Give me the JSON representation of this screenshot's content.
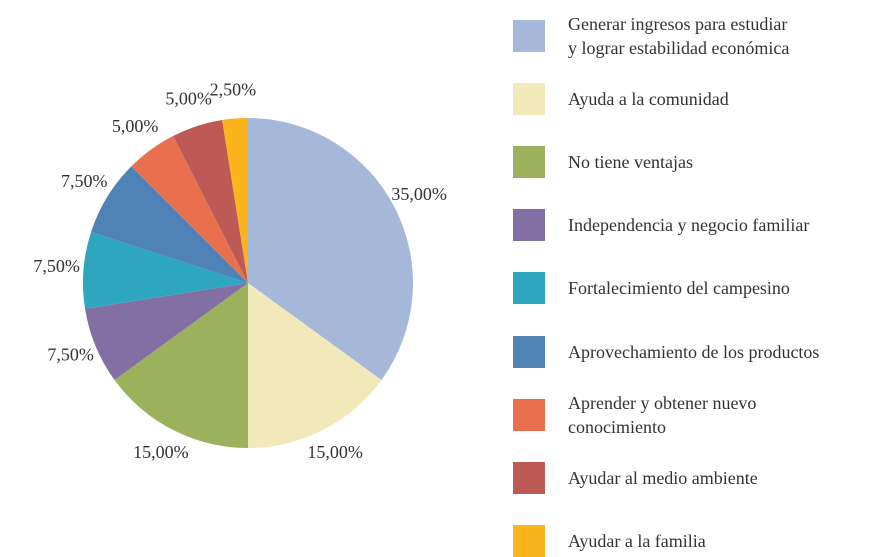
{
  "chart_data": {
    "type": "pie",
    "categories": [
      "Generar ingresos para estudiar\ny lograr estabilidad económica",
      "Ayuda a la comunidad",
      "No tiene ventajas",
      "Independencia y negocio familiar",
      "Fortalecimiento del campesino",
      "Aprovechamiento de los productos",
      "Aprender y obtener nuevo\nconocimiento",
      "Ayudar al medio ambiente",
      "Ayudar a la familia"
    ],
    "values": [
      35,
      15,
      15,
      7.5,
      7.5,
      7.5,
      5,
      5,
      2.5
    ],
    "value_labels": [
      "35,00%",
      "15,00%",
      "15,00%",
      "7,50%",
      "7,50%",
      "7,50%",
      "5,00%",
      "5,00%",
      "2,50%"
    ],
    "colors": [
      "#a5b8d9",
      "#f1e9b9",
      "#9bb15c",
      "#8270a5",
      "#2fa6bf",
      "#4f82b5",
      "#e8704f",
      "#bd5a55",
      "#fbb41c"
    ],
    "legend": "right"
  }
}
